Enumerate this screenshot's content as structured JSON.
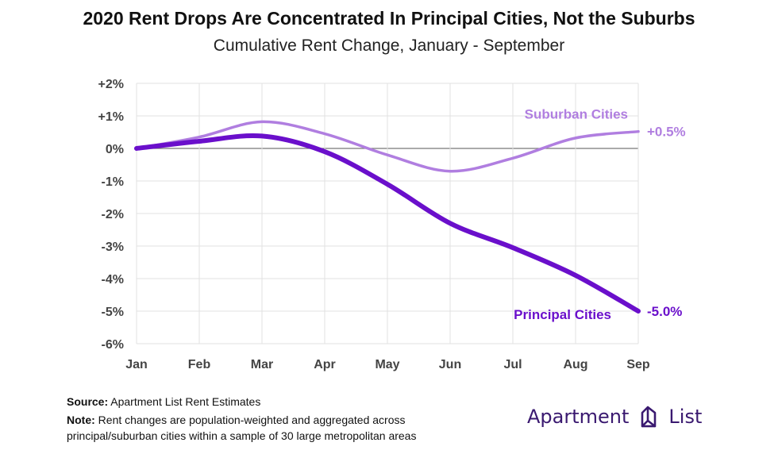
{
  "header": {
    "title": "2020 Rent Drops Are Concentrated In Principal Cities, Not the Suburbs",
    "subtitle": "Cumulative Rent Change, January - September"
  },
  "chart_data": {
    "type": "line",
    "title": "2020 Rent Drops Are Concentrated In Principal Cities, Not the Suburbs",
    "subtitle": "Cumulative Rent Change, January - September",
    "categories": [
      "Jan",
      "Feb",
      "Mar",
      "Apr",
      "May",
      "Jun",
      "Jul",
      "Aug",
      "Sep"
    ],
    "y_ticks": [
      {
        "value": 2,
        "label": "+2%"
      },
      {
        "value": 1,
        "label": "+1%"
      },
      {
        "value": 0,
        "label": "0%"
      },
      {
        "value": -1,
        "label": "-1%"
      },
      {
        "value": -2,
        "label": "-2%"
      },
      {
        "value": -3,
        "label": "-3%"
      },
      {
        "value": -4,
        "label": "-4%"
      },
      {
        "value": -5,
        "label": "-5%"
      },
      {
        "value": -6,
        "label": "-6%"
      }
    ],
    "ylim": [
      -6,
      2
    ],
    "grid": true,
    "series": [
      {
        "name": "Suburban Cities",
        "color": "#b07ee0",
        "values": [
          0.0,
          0.35,
          0.82,
          0.45,
          -0.2,
          -0.7,
          -0.3,
          0.32,
          0.52
        ],
        "end_label": "+0.5%"
      },
      {
        "name": "Principal Cities",
        "color": "#6a0fcb",
        "values": [
          0.0,
          0.22,
          0.38,
          -0.1,
          -1.1,
          -2.3,
          -3.05,
          -3.9,
          -5.0
        ],
        "end_label": "-5.0%"
      }
    ]
  },
  "footer": {
    "source_label": "Source:",
    "source_text": " Apartment List Rent Estimates",
    "note_label": "Note:",
    "note_line1": " Rent changes are population-weighted and aggregated across",
    "note_line2": "principal/suburban cities within a sample of 30 large metropolitan areas"
  },
  "logo": {
    "text": "Apartment",
    "text2": "List",
    "icon": "apartment-list-logo-icon",
    "color": "#3a1970"
  }
}
